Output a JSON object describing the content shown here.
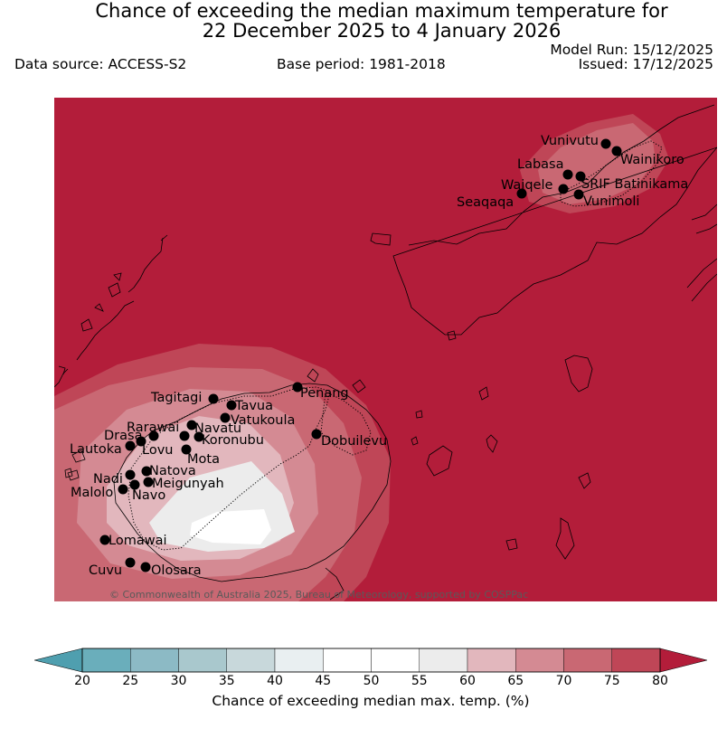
{
  "title_line1": "Chance of exceeding the median maximum temperature for",
  "title_line2": "22 December 2025 to 4 January 2026",
  "data_source": "Data source: ACCESS-S2",
  "base_period": "Base period: 1981-2018",
  "model_run": "Model Run: 15/12/2025",
  "issued": "Issued: 17/12/2025",
  "copyright": "© Commonwealth of Australia 2025, Bureau of Meteorology, supported by COSPPac",
  "colorbar": {
    "label": "Chance of exceeding median max. temp. (%)",
    "ticks": [
      "20",
      "25",
      "30",
      "35",
      "40",
      "45",
      "50",
      "55",
      "60",
      "65",
      "70",
      "75",
      "80"
    ],
    "colors": [
      "#6aaebb",
      "#8cbac5",
      "#a9c8cd",
      "#c8d8db",
      "#e9eff1",
      "#ffffff",
      "#ffffff",
      "#ececec",
      "#e2b7bd",
      "#d48a93",
      "#c96873",
      "#bf4657"
    ],
    "under_color": "#4f9faf",
    "over_color": "#b31d3a"
  },
  "map": {
    "background_color": "#b31d3a",
    "places": [
      {
        "name": "Vunivutu"
      },
      {
        "name": "Wainikoro"
      },
      {
        "name": "Labasa"
      },
      {
        "name": "Waiqele"
      },
      {
        "name": "SRIF Batinikama"
      },
      {
        "name": "Seaqaqa"
      },
      {
        "name": "Vunimoli"
      },
      {
        "name": "Penang"
      },
      {
        "name": "Tagitagi"
      },
      {
        "name": "Tavua"
      },
      {
        "name": "Vatukoula"
      },
      {
        "name": "Rarawai"
      },
      {
        "name": "Navatu"
      },
      {
        "name": "Koronubu"
      },
      {
        "name": "Drasa"
      },
      {
        "name": "Lautoka"
      },
      {
        "name": "Lovu"
      },
      {
        "name": "Mota"
      },
      {
        "name": "Dobuilevu"
      },
      {
        "name": "Nadi"
      },
      {
        "name": "Natova"
      },
      {
        "name": "Meigunyah"
      },
      {
        "name": "Malolo"
      },
      {
        "name": "Navo"
      },
      {
        "name": "Lomawai"
      },
      {
        "name": "Cuvu"
      },
      {
        "name": "Olosara"
      }
    ]
  }
}
